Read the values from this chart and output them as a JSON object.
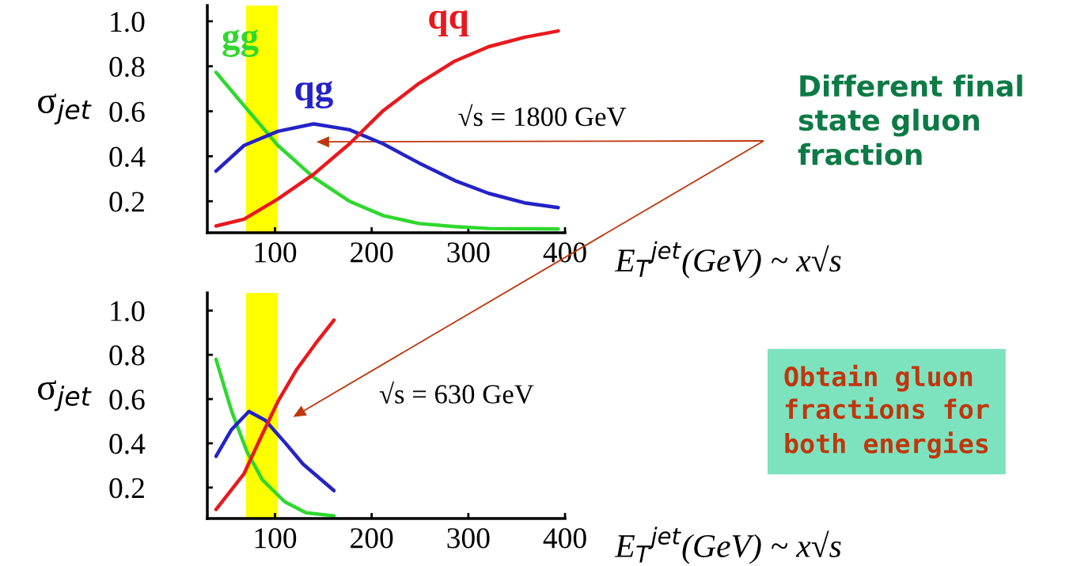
{
  "chart_data": [
    {
      "type": "line",
      "ylabel": "σ$_{jet}$",
      "xlabel": "E$_{T}$$^{jet}$(GeV) ~ x√s",
      "xlim": [
        30,
        400
      ],
      "ylim": [
        0.06,
        1.07
      ],
      "xticks": [
        100,
        200,
        300,
        400
      ],
      "yticks": [
        0.2,
        0.4,
        0.6,
        0.8,
        {
          "value": 1,
          "label": "1.0"
        }
      ],
      "grid": false,
      "bands": [
        {
          "axis": "x",
          "from": 70,
          "to": 103,
          "color": "#ffff00"
        }
      ],
      "annotations": [
        "√s = 1800 GeV"
      ],
      "series": [
        {
          "name": "gg",
          "color": "#2ed82e",
          "x": [
            39,
            68,
            103,
            140,
            177,
            212,
            249,
            286,
            321,
            393
          ],
          "values": [
            0.773,
            0.625,
            0.448,
            0.306,
            0.2,
            0.136,
            0.101,
            0.087,
            0.079,
            0.077
          ]
        },
        {
          "name": "qg",
          "color": "#2323c8",
          "x": [
            39,
            68,
            103,
            140,
            177,
            212,
            249,
            286,
            321,
            358,
            393
          ],
          "values": [
            0.334,
            0.448,
            0.511,
            0.544,
            0.518,
            0.455,
            0.37,
            0.292,
            0.235,
            0.193,
            0.172
          ]
        },
        {
          "name": "qq",
          "color": "#e8191e",
          "x": [
            39,
            68,
            103,
            140,
            177,
            212,
            249,
            286,
            321,
            358,
            393
          ],
          "values": [
            0.09,
            0.12,
            0.21,
            0.32,
            0.455,
            0.603,
            0.724,
            0.823,
            0.887,
            0.929,
            0.957
          ]
        }
      ]
    },
    {
      "type": "line",
      "ylabel": "σ$_{jet}$",
      "xlabel": "E$_{T}$$^{jet}$(GeV) ~ x√s",
      "xlim": [
        30,
        400
      ],
      "ylim": [
        0.06,
        1.08
      ],
      "xticks": [
        100,
        200,
        300,
        400
      ],
      "yticks": [
        0.2,
        0.4,
        0.6,
        0.8,
        {
          "value": 1,
          "label": "1.0"
        }
      ],
      "grid": false,
      "bands": [
        {
          "axis": "x",
          "from": 70,
          "to": 103,
          "color": "#ffff00"
        }
      ],
      "annotations": [
        "√s = 630 GeV"
      ],
      "series": [
        {
          "color": "#2ed82e",
          "x": [
            39,
            55,
            71,
            87,
            110,
            132,
            161
          ],
          "values": [
            0.78,
            0.547,
            0.362,
            0.235,
            0.136,
            0.086,
            0.072
          ]
        },
        {
          "color": "#2323c8",
          "x": [
            39,
            55,
            73,
            90,
            110,
            129,
            161
          ],
          "values": [
            0.341,
            0.462,
            0.544,
            0.504,
            0.405,
            0.306,
            0.186
          ]
        },
        {
          "color": "#e8191e",
          "x": [
            39,
            68,
            86,
            103,
            122,
            142,
            161
          ],
          "values": [
            0.101,
            0.263,
            0.433,
            0.589,
            0.731,
            0.851,
            0.957
          ]
        }
      ]
    },
    {
      "type": "other",
      "annotations": [
        "Different final state gluon fraction",
        "Obtain gluon fractions for both energies"
      ]
    }
  ]
}
